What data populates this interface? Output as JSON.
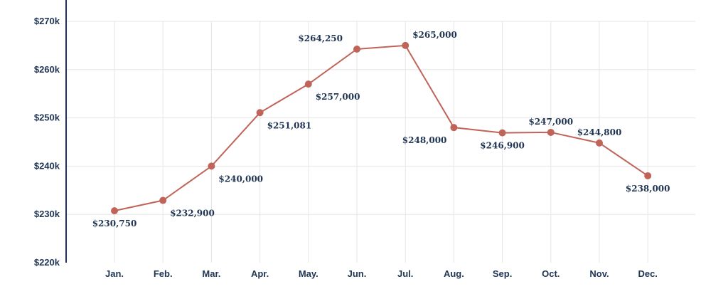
{
  "chart_data": {
    "type": "line",
    "title": "",
    "xlabel": "",
    "ylabel": "",
    "categories": [
      "Jan.",
      "Feb.",
      "Mar.",
      "Apr.",
      "May.",
      "Jun.",
      "Jul.",
      "Aug.",
      "Sep.",
      "Oct.",
      "Nov.",
      "Dec."
    ],
    "values": [
      230750,
      232900,
      240000,
      251081,
      257000,
      264250,
      265000,
      248000,
      246900,
      247000,
      244800,
      238000
    ],
    "data_labels": [
      "$230,750",
      "$232,900",
      "$240,000",
      "$251,081",
      "$257,000",
      "$264,250",
      "$265,000",
      "$248,000",
      "$246,900",
      "$247,000",
      "$244,800",
      "$238,000"
    ],
    "label_positions": [
      "below",
      "below",
      "below",
      "below",
      "below",
      "above",
      "above",
      "below",
      "below",
      "above",
      "above",
      "below"
    ],
    "ylim": [
      220000,
      270000
    ],
    "yticks": [
      220000,
      230000,
      240000,
      250000,
      260000,
      270000
    ],
    "ytick_labels": [
      "$220k",
      "$230k",
      "$240k",
      "$250k",
      "$260k",
      "$270k"
    ],
    "grid": true,
    "colors": {
      "series": "#c0645a",
      "axis": "#1f3553",
      "text": "#1f3553",
      "grid": "#e6e6e6"
    }
  }
}
